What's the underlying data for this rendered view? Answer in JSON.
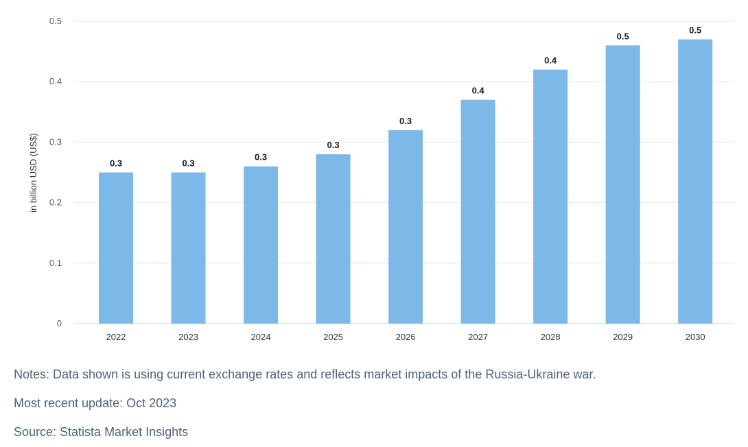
{
  "chart_data": {
    "type": "bar",
    "categories": [
      "2022",
      "2023",
      "2024",
      "2025",
      "2026",
      "2027",
      "2028",
      "2029",
      "2030"
    ],
    "values": [
      0.25,
      0.25,
      0.26,
      0.28,
      0.32,
      0.37,
      0.42,
      0.46,
      0.47
    ],
    "data_labels": [
      "0.3",
      "0.3",
      "0.3",
      "0.3",
      "0.3",
      "0.4",
      "0.4",
      "0.5",
      "0.5"
    ],
    "ylabel": "in billion USD (US$)",
    "yticks": [
      "0",
      "0.1",
      "0.2",
      "0.3",
      "0.4",
      "0.5"
    ],
    "ylim": [
      0,
      0.5
    ],
    "grid": true,
    "bar_color": "#7db9e8"
  },
  "footer": {
    "notes": "Notes: Data shown is using current exchange rates and reflects market impacts of the Russia-Ukraine war.",
    "update": "Most recent update: Oct 2023",
    "source": "Source: Statista Market Insights"
  }
}
